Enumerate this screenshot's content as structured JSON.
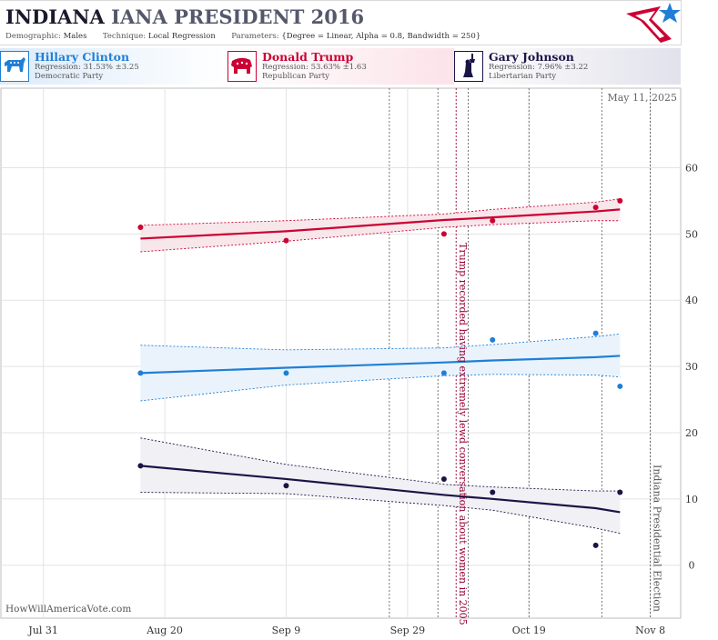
{
  "header": {
    "title_state": "INDIANA",
    "title_rest": "IANA PRESIDENT 2016",
    "demographic_label": "Demographic:",
    "demographic_value": "Males",
    "technique_label": "Technique:",
    "technique_value": "Local Regression",
    "parameters_label": "Parameters:",
    "parameters_value": "{Degree = Linear, Alpha = 0.8, Bandwidth = 250}"
  },
  "candidates": [
    {
      "name": "Hillary Clinton",
      "regression": "Regression: 31.53% ±3.25",
      "party": "Democratic Party",
      "icon": "donkey-icon",
      "color": "#1f7fd6"
    },
    {
      "name": "Donald Trump",
      "regression": "Regression: 53.63% ±1.63",
      "party": "Republican Party",
      "icon": "elephant-icon",
      "color": "#cc0033"
    },
    {
      "name": "Gary Johnson",
      "regression": "Regression: 7.96% ±3.22",
      "party": "Libertarian Party",
      "icon": "statue-of-liberty-icon",
      "color": "#1a1446"
    }
  ],
  "chart_data": {
    "type": "scatter",
    "date_stamp": "May 11, 2025",
    "watermark": "HowWillAmericaVote.com",
    "x_tick_labels": [
      "Jul 31",
      "Aug 20",
      "Sep 9",
      "Sep 29",
      "Oct 19",
      "Nov 8"
    ],
    "x_ticks": [
      "2016-07-31",
      "2016-08-20",
      "2016-09-09",
      "2016-09-29",
      "2016-10-19",
      "2016-11-08"
    ],
    "x_range": [
      "2016-07-24",
      "2016-11-13"
    ],
    "y_ticks": [
      0,
      10,
      20,
      30,
      40,
      50,
      60
    ],
    "ylim": [
      -8,
      72
    ],
    "grid": true,
    "annotations": [
      {
        "date": "2016-10-07",
        "text": "Trump recorded having extremely lewd conversation about women in 2005",
        "color": "#990033"
      },
      {
        "date": "2016-11-08",
        "text": "Indiana Presidential Election",
        "color": "#555555"
      }
    ],
    "event_lines": [
      "2016-09-26",
      "2016-10-04",
      "2016-10-09",
      "2016-10-19",
      "2016-10-31"
    ],
    "series": [
      {
        "name": "Donald Trump",
        "color": "#cc0033",
        "band_fill": "#f7e6ea",
        "points": [
          [
            "2016-08-16",
            51
          ],
          [
            "2016-09-09",
            49
          ],
          [
            "2016-10-05",
            50
          ],
          [
            "2016-10-13",
            52
          ],
          [
            "2016-10-30",
            54
          ],
          [
            "2016-11-03",
            55
          ]
        ],
        "trend": [
          [
            "2016-08-16",
            49.3
          ],
          [
            "2016-09-09",
            50.4
          ],
          [
            "2016-10-05",
            52.1
          ],
          [
            "2016-10-13",
            52.5
          ],
          [
            "2016-10-30",
            53.4
          ],
          [
            "2016-11-03",
            53.7
          ]
        ],
        "upper": [
          [
            "2016-08-16",
            51.3
          ],
          [
            "2016-09-09",
            52.0
          ],
          [
            "2016-10-05",
            53.0
          ],
          [
            "2016-10-13",
            53.7
          ],
          [
            "2016-10-30",
            54.8
          ],
          [
            "2016-11-03",
            55.3
          ]
        ],
        "lower": [
          [
            "2016-08-16",
            47.3
          ],
          [
            "2016-09-09",
            48.9
          ],
          [
            "2016-10-05",
            51.0
          ],
          [
            "2016-10-13",
            51.4
          ],
          [
            "2016-10-30",
            52.0
          ],
          [
            "2016-11-03",
            52.0
          ]
        ]
      },
      {
        "name": "Hillary Clinton",
        "color": "#1f7fd6",
        "band_fill": "#eaf3fb",
        "points": [
          [
            "2016-08-16",
            29
          ],
          [
            "2016-09-09",
            29
          ],
          [
            "2016-10-05",
            29
          ],
          [
            "2016-10-13",
            34
          ],
          [
            "2016-10-30",
            35
          ],
          [
            "2016-11-03",
            27
          ]
        ],
        "trend": [
          [
            "2016-08-16",
            29.0
          ],
          [
            "2016-09-09",
            29.8
          ],
          [
            "2016-10-05",
            30.6
          ],
          [
            "2016-10-13",
            30.9
          ],
          [
            "2016-10-30",
            31.4
          ],
          [
            "2016-11-03",
            31.6
          ]
        ],
        "upper": [
          [
            "2016-08-16",
            33.2
          ],
          [
            "2016-09-09",
            32.5
          ],
          [
            "2016-10-05",
            32.8
          ],
          [
            "2016-10-13",
            33.3
          ],
          [
            "2016-10-30",
            34.5
          ],
          [
            "2016-11-03",
            34.9
          ]
        ],
        "lower": [
          [
            "2016-08-16",
            24.8
          ],
          [
            "2016-09-09",
            27.2
          ],
          [
            "2016-10-05",
            28.6
          ],
          [
            "2016-10-13",
            28.8
          ],
          [
            "2016-10-30",
            28.7
          ],
          [
            "2016-11-03",
            28.4
          ]
        ]
      },
      {
        "name": "Gary Johnson",
        "color": "#1a1446",
        "band_fill": "#f0f0f5",
        "points": [
          [
            "2016-08-16",
            15
          ],
          [
            "2016-09-09",
            12
          ],
          [
            "2016-10-05",
            13
          ],
          [
            "2016-10-13",
            11
          ],
          [
            "2016-10-30",
            3
          ],
          [
            "2016-11-03",
            11
          ]
        ],
        "trend": [
          [
            "2016-08-16",
            15.0
          ],
          [
            "2016-09-09",
            13.0
          ],
          [
            "2016-10-05",
            10.6
          ],
          [
            "2016-10-13",
            10.0
          ],
          [
            "2016-10-30",
            8.6
          ],
          [
            "2016-11-03",
            8.0
          ]
        ],
        "upper": [
          [
            "2016-08-16",
            19.2
          ],
          [
            "2016-09-09",
            15.2
          ],
          [
            "2016-10-05",
            12.2
          ],
          [
            "2016-10-13",
            11.8
          ],
          [
            "2016-10-30",
            11.2
          ],
          [
            "2016-11-03",
            11.2
          ]
        ],
        "lower": [
          [
            "2016-08-16",
            11.0
          ],
          [
            "2016-09-09",
            10.8
          ],
          [
            "2016-10-05",
            9.0
          ],
          [
            "2016-10-13",
            8.3
          ],
          [
            "2016-10-30",
            5.6
          ],
          [
            "2016-11-03",
            4.8
          ]
        ]
      }
    ]
  }
}
